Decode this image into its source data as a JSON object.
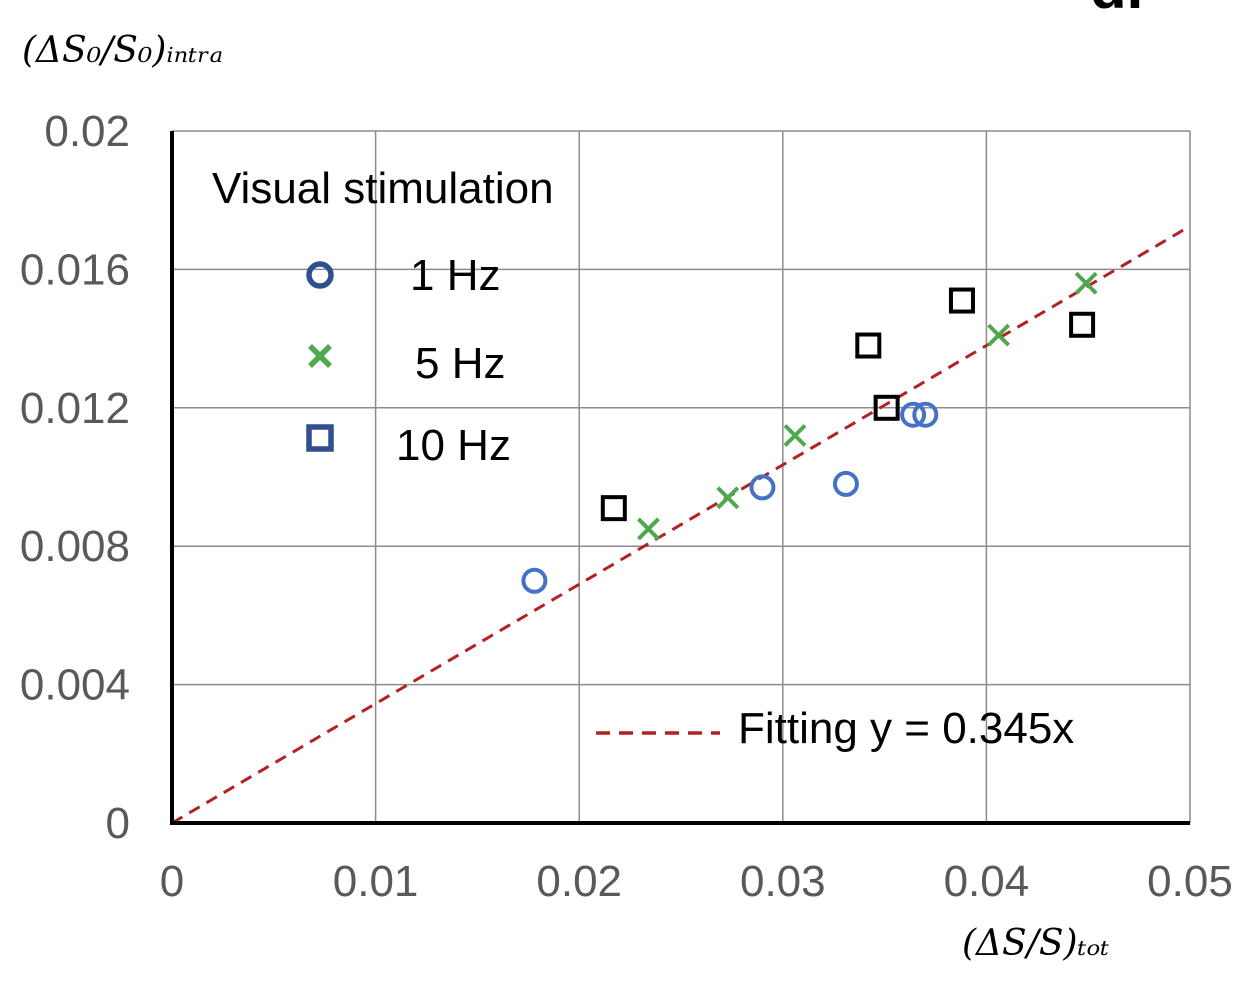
{
  "chart_data": {
    "type": "scatter",
    "panel_label": "d.",
    "ylabel": "(ΔS₀/S₀)ᵢₙₜᵣₐ",
    "xlabel": "(ΔS/S)ₜₒₜ",
    "xlim": [
      0,
      0.05
    ],
    "ylim": [
      0,
      0.02
    ],
    "x_ticks": [
      "0",
      "0.01",
      "0.02",
      "0.03",
      "0.04",
      "0.05"
    ],
    "y_ticks": [
      "0",
      "0.004",
      "0.008",
      "0.012",
      "0.016",
      "0.02"
    ],
    "x_tick_values": [
      0,
      0.01,
      0.02,
      0.03,
      0.04,
      0.05
    ],
    "y_tick_values": [
      0,
      0.004,
      0.008,
      0.012,
      0.016,
      0.02
    ],
    "grid": true,
    "legend_title": "Visual stimulation",
    "series": [
      {
        "name": "1 Hz",
        "marker": "circle",
        "color": "#4472C4",
        "legend_color": "#2F4F8F",
        "points": [
          [
            0.0178,
            0.007
          ],
          [
            0.029,
            0.0097
          ],
          [
            0.0331,
            0.0098
          ],
          [
            0.0364,
            0.0118
          ],
          [
            0.037,
            0.0118
          ]
        ]
      },
      {
        "name": "5 Hz",
        "marker": "x",
        "color": "#4EA84E",
        "legend_color": "#4EA84E",
        "points": [
          [
            0.0234,
            0.0085
          ],
          [
            0.0273,
            0.0094
          ],
          [
            0.0306,
            0.0112
          ],
          [
            0.0406,
            0.0141
          ],
          [
            0.0449,
            0.0156
          ]
        ]
      },
      {
        "name": "10 Hz",
        "marker": "square",
        "color": "#000000",
        "legend_color": "#2F4F8F",
        "points": [
          [
            0.0217,
            0.0091
          ],
          [
            0.0342,
            0.0138
          ],
          [
            0.0351,
            0.012
          ],
          [
            0.0388,
            0.0151
          ],
          [
            0.0447,
            0.0144
          ]
        ]
      }
    ],
    "fit": {
      "label": "Fitting y = 0.345x",
      "slope": 0.345,
      "color": "#B22222",
      "style": "dashed"
    }
  }
}
